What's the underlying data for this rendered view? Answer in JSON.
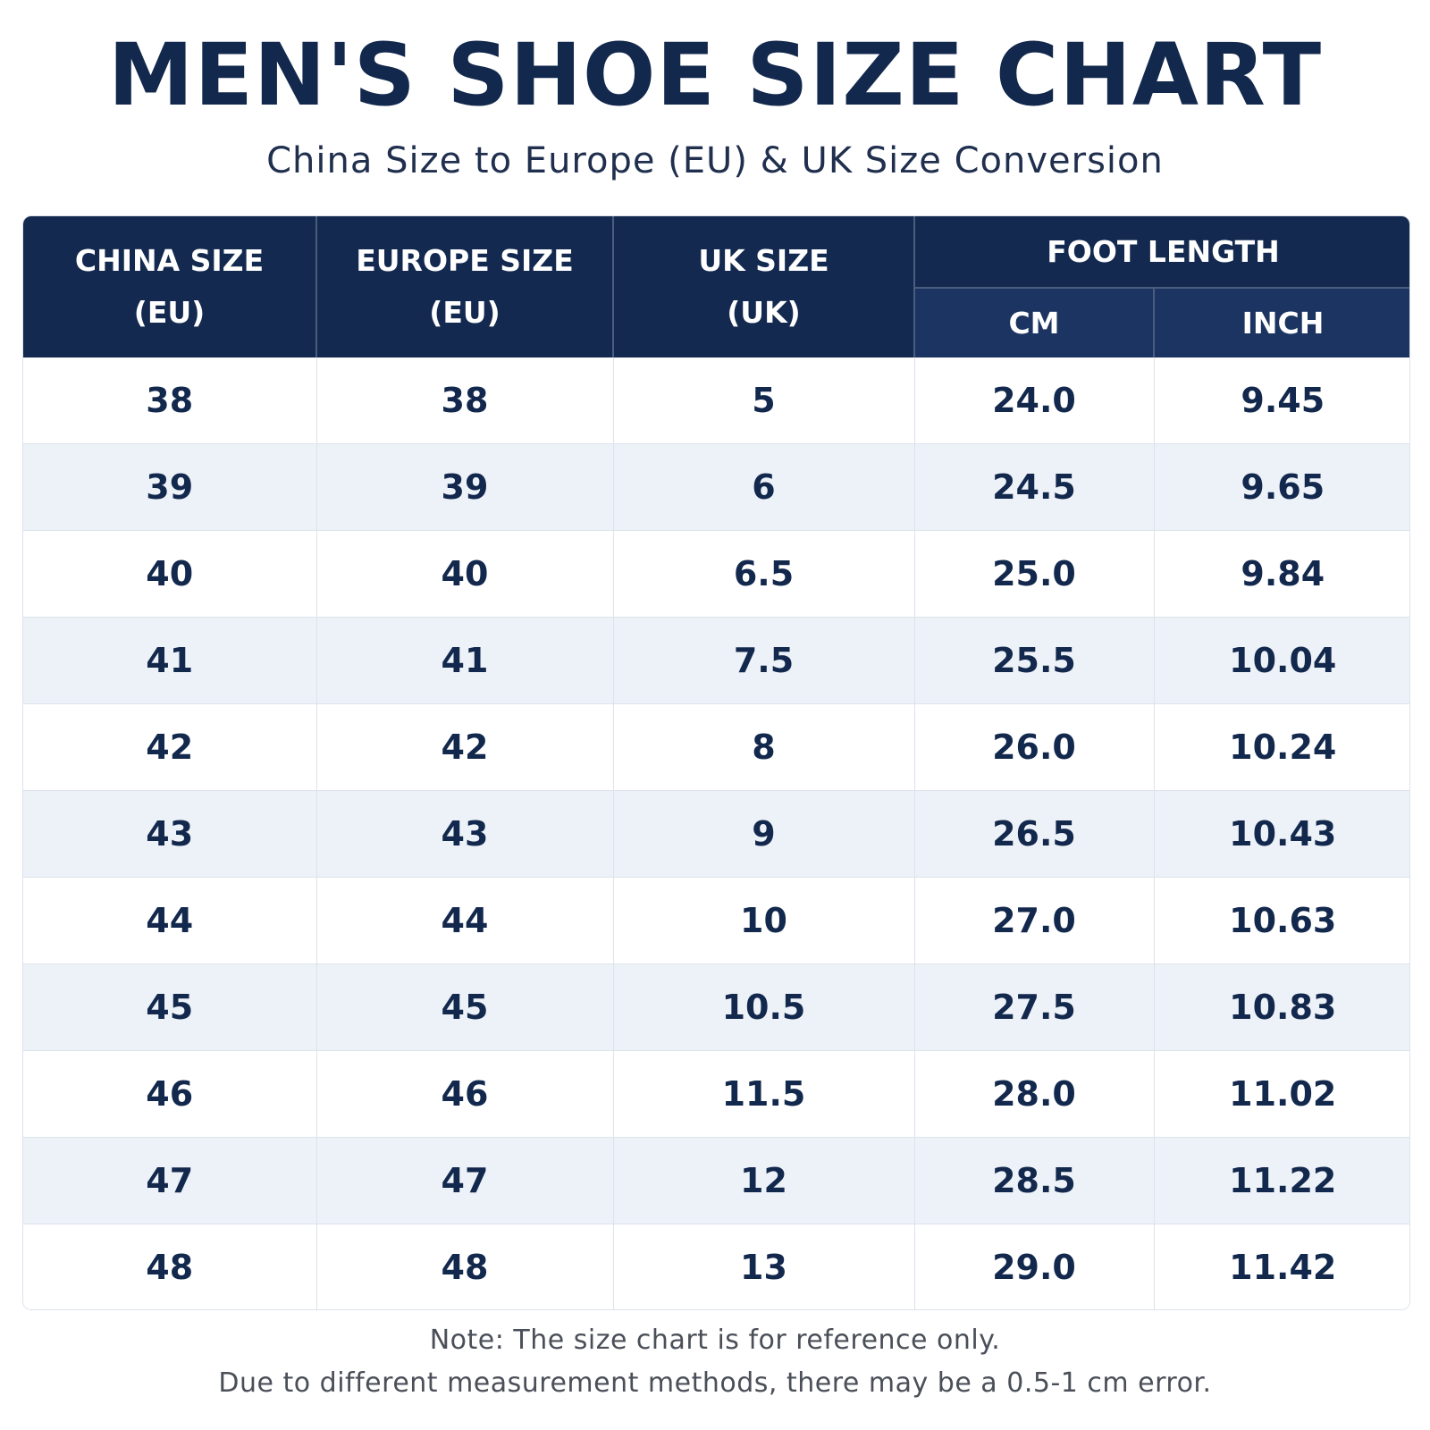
{
  "title": "MEN'S SHOE SIZE CHART",
  "subtitle": "China Size to Europe (EU) & UK Size Conversion",
  "table": {
    "headers": {
      "china": [
        "CHINA SIZE",
        "(EU)"
      ],
      "europe": [
        "EUROPE SIZE",
        "(EU)"
      ],
      "uk": [
        "UK SIZE",
        "(UK)"
      ],
      "foot_length": "FOOT LENGTH",
      "cm": "CM",
      "inch": "INCH"
    },
    "rows": [
      [
        "38",
        "38",
        "5",
        "24.0",
        "9.45"
      ],
      [
        "39",
        "39",
        "6",
        "24.5",
        "9.65"
      ],
      [
        "40",
        "40",
        "6.5",
        "25.0",
        "9.84"
      ],
      [
        "41",
        "41",
        "7.5",
        "25.5",
        "10.04"
      ],
      [
        "42",
        "42",
        "8",
        "26.0",
        "10.24"
      ],
      [
        "43",
        "43",
        "9",
        "26.5",
        "10.43"
      ],
      [
        "44",
        "44",
        "10",
        "27.0",
        "10.63"
      ],
      [
        "45",
        "45",
        "10.5",
        "27.5",
        "10.83"
      ],
      [
        "46",
        "46",
        "11.5",
        "28.0",
        "11.02"
      ],
      [
        "47",
        "47",
        "12",
        "28.5",
        "11.22"
      ],
      [
        "48",
        "48",
        "13",
        "29.0",
        "11.42"
      ]
    ]
  },
  "notes": {
    "line1": "Note: The size chart is for reference only.",
    "line2": "Due to different measurement methods, there may be a 0.5-1 cm error."
  },
  "colors": {
    "header_bg": "#13294f",
    "subheader_bg": "#1b3461",
    "stripe": "#edf2f8",
    "text": "#13284d"
  }
}
